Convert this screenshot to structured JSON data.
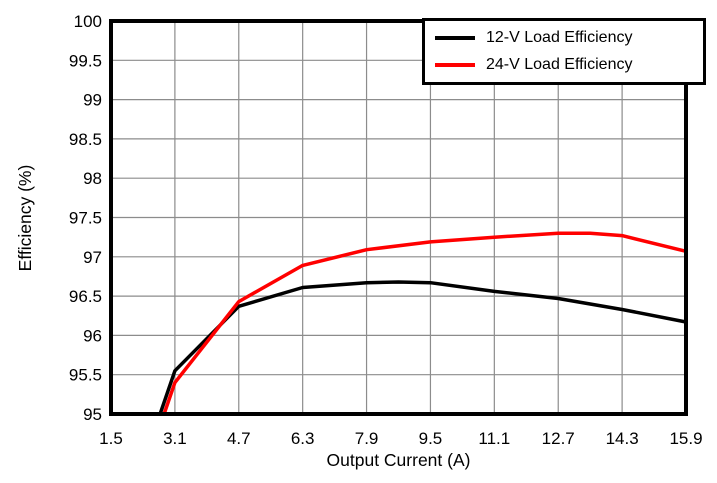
{
  "chart_data": {
    "type": "line",
    "title": "",
    "xlabel": "Output Current (A)",
    "ylabel": "Efficiency (%)",
    "xlim": [
      1.5,
      15.9
    ],
    "ylim": [
      95,
      100
    ],
    "grid": true,
    "legend_position": "top-right",
    "x_ticks": [
      1.5,
      3.1,
      4.7,
      6.3,
      7.9,
      9.5,
      11.1,
      12.7,
      14.3,
      15.9
    ],
    "x_tick_labels": [
      "1.5",
      "3.1",
      "4.7",
      "6.3",
      "7.9",
      "9.5",
      "11.1",
      "12.7",
      "14.3",
      "15.9"
    ],
    "y_ticks": [
      95,
      95.5,
      96,
      96.5,
      97,
      97.5,
      98,
      98.5,
      99,
      99.5,
      100
    ],
    "y_tick_labels": [
      "95",
      "95.5",
      "96",
      "96.5",
      "97",
      "97.5",
      "98",
      "98.5",
      "99",
      "99.5",
      "100"
    ],
    "series": [
      {
        "name": "12-V Load Efficiency",
        "color": "#000000",
        "points": [
          [
            2.73,
            95.0
          ],
          [
            3.1,
            95.55
          ],
          [
            4.7,
            96.37
          ],
          [
            6.3,
            96.61
          ],
          [
            7.9,
            96.67
          ],
          [
            8.7,
            96.68
          ],
          [
            9.5,
            96.67
          ],
          [
            11.1,
            96.56
          ],
          [
            12.7,
            96.47
          ],
          [
            14.3,
            96.33
          ],
          [
            15.9,
            96.17
          ]
        ]
      },
      {
        "name": "24-V Load Efficiency",
        "color": "#ff0000",
        "points": [
          [
            2.83,
            95.0
          ],
          [
            3.1,
            95.4
          ],
          [
            4.7,
            96.43
          ],
          [
            6.3,
            96.89
          ],
          [
            7.9,
            97.09
          ],
          [
            9.5,
            97.19
          ],
          [
            11.1,
            97.25
          ],
          [
            12.7,
            97.3
          ],
          [
            13.5,
            97.3
          ],
          [
            14.3,
            97.27
          ],
          [
            15.9,
            97.07
          ]
        ]
      }
    ],
    "colors": {
      "grid": "#8c8c8c",
      "frame": "#000000",
      "background": "#ffffff",
      "text": "#000000"
    }
  }
}
